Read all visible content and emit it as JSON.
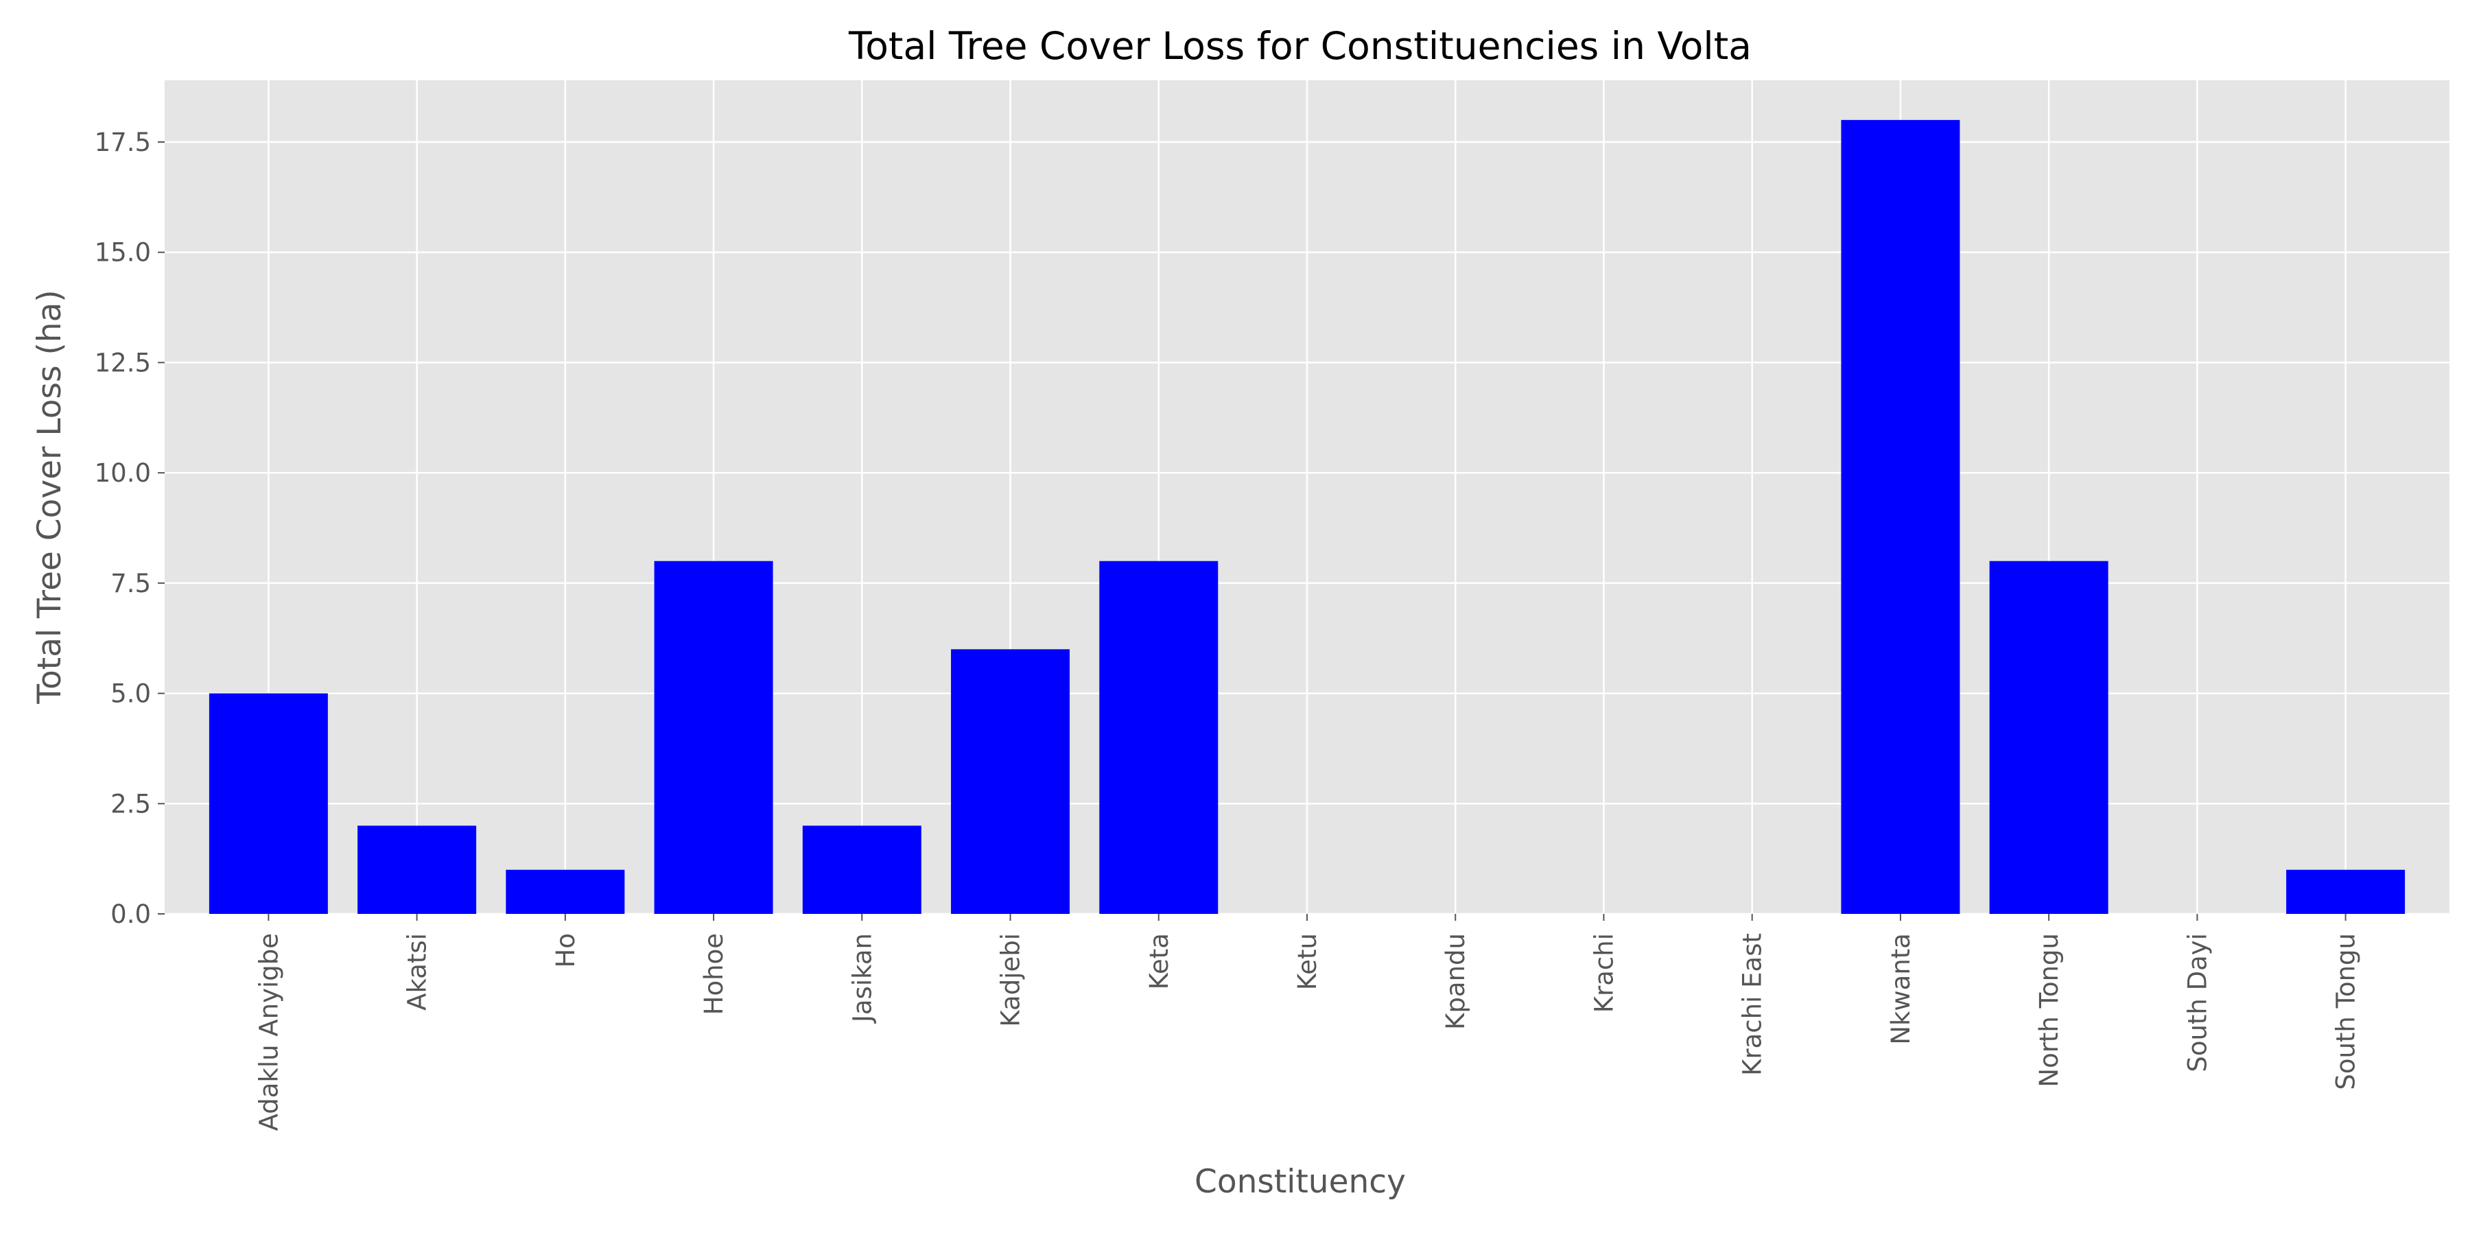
{
  "chart_data": {
    "type": "bar",
    "title": "Total Tree Cover Loss for Constituencies in Volta",
    "xlabel": "Constituency",
    "ylabel": "Total Tree Cover Loss (ha)",
    "categories": [
      "Adaklu Anyigbe",
      "Akatsi",
      "Ho",
      "Hohoe",
      "Jasikan",
      "Kadjebi",
      "Keta",
      "Ketu",
      "Kpandu",
      "Krachi",
      "Krachi East",
      "Nkwanta",
      "North Tongu",
      "South Dayi",
      "South Tongu"
    ],
    "values": [
      5,
      2,
      1,
      8,
      2,
      6,
      8,
      0,
      0,
      0,
      0,
      18,
      8,
      0,
      1
    ],
    "yticks": [
      "0.0",
      "2.5",
      "5.0",
      "7.5",
      "10.0",
      "12.5",
      "15.0",
      "17.5"
    ],
    "ylim": [
      0,
      18.9
    ],
    "grid": true,
    "legend": "none",
    "colors": {
      "bar": "#0000ff",
      "plot_background": "#e5e5e5",
      "grid": "#ffffff",
      "text": "#555555",
      "title": "#000000"
    }
  }
}
